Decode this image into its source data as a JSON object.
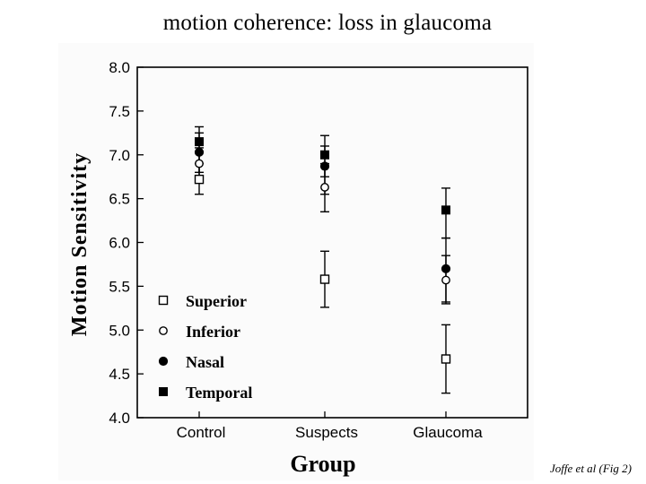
{
  "slide": {
    "title": "motion coherence:  loss in glaucoma",
    "caption": "Joffe et al (Fig 2)"
  },
  "chart_data": {
    "type": "scatter",
    "xlabel": "Group",
    "ylabel": "Motion  Sensitivity",
    "categories": [
      "Control",
      "Suspects",
      "Glaucoma"
    ],
    "ylim": [
      4.0,
      8.0
    ],
    "yticks": [
      "4.0",
      "4.5",
      "5.0",
      "5.5",
      "6.0",
      "6.5",
      "7.0",
      "7.5",
      "8.0"
    ],
    "legend_position": "bottom-left",
    "series": [
      {
        "name": "Superior",
        "marker": "open-square",
        "values": [
          6.72,
          5.58,
          4.67
        ],
        "err_low": [
          6.55,
          5.26,
          4.28
        ],
        "err_high": [
          6.9,
          5.9,
          5.06
        ]
      },
      {
        "name": "Inferior",
        "marker": "open-circle",
        "values": [
          6.9,
          6.63,
          5.57
        ],
        "err_low": [
          6.72,
          6.35,
          5.3
        ],
        "err_high": [
          7.08,
          6.9,
          5.85
        ]
      },
      {
        "name": "Nasal",
        "marker": "filled-circle",
        "values": [
          7.03,
          6.87,
          5.7
        ],
        "err_low": [
          6.8,
          6.55,
          5.32
        ],
        "err_high": [
          7.25,
          7.1,
          6.05
        ]
      },
      {
        "name": "Temporal",
        "marker": "filled-square",
        "values": [
          7.15,
          7.0,
          6.37
        ],
        "err_low": [
          6.9,
          6.75,
          6.05
        ],
        "err_high": [
          7.32,
          7.22,
          6.62
        ]
      }
    ]
  }
}
